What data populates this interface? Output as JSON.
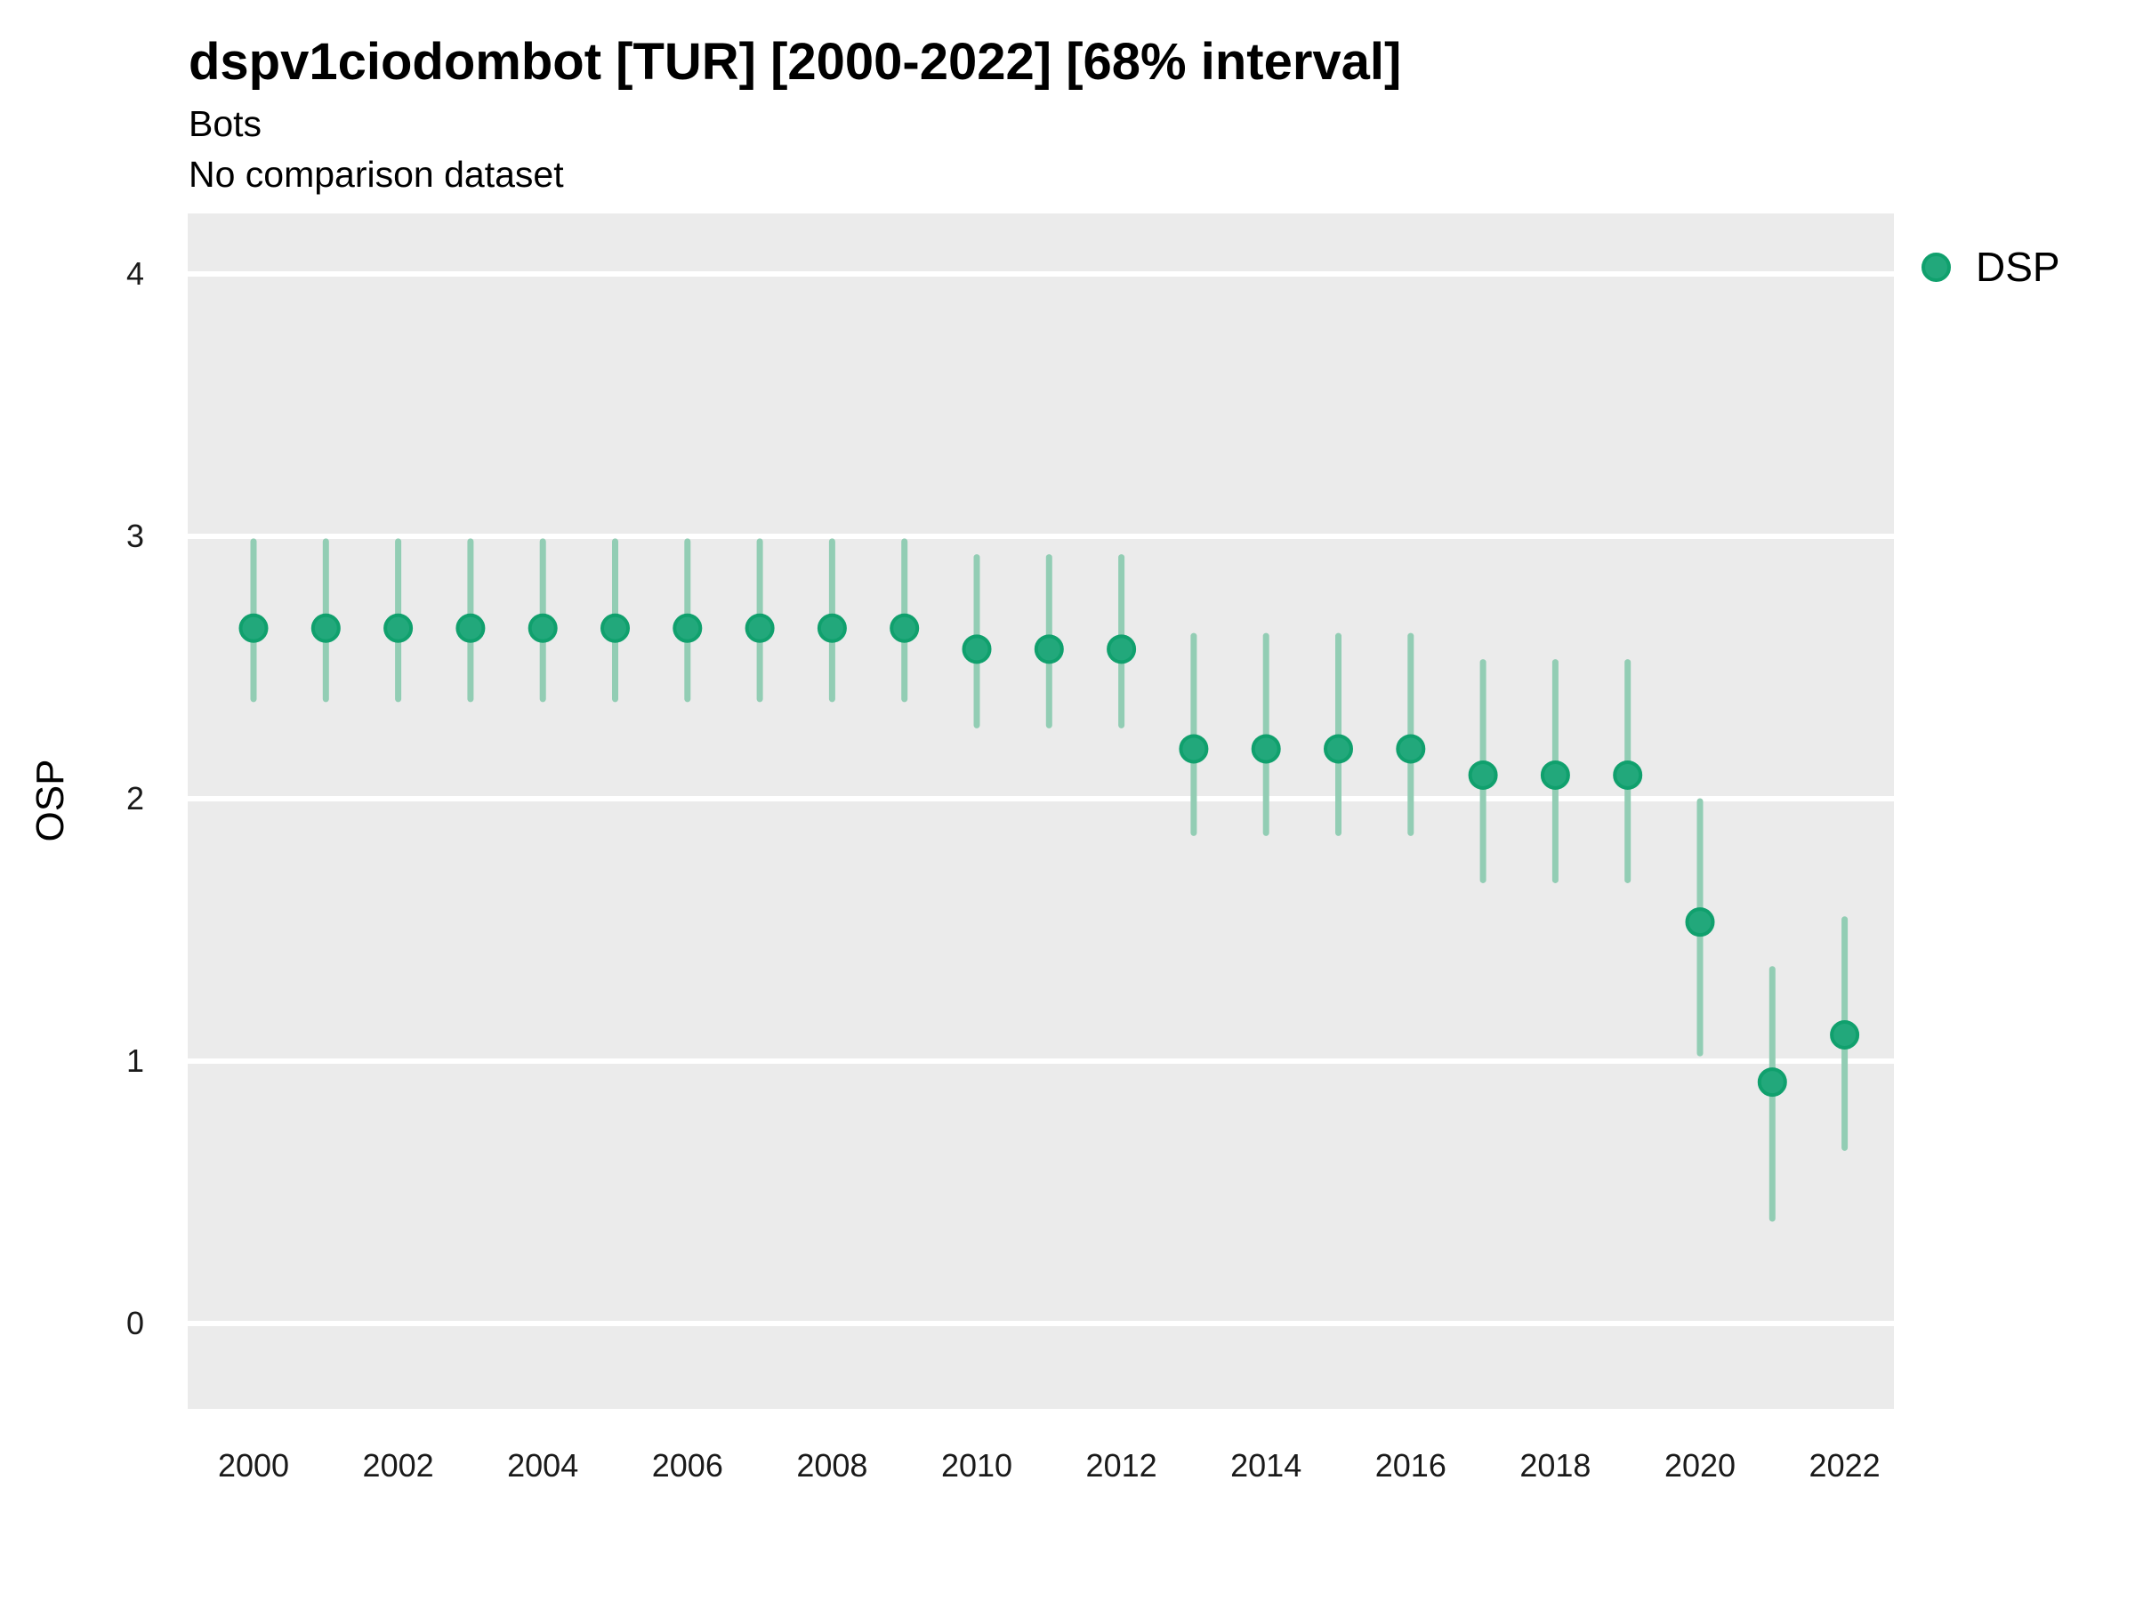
{
  "header": {
    "title": "dspv1ciodombot [TUR] [2000-2022] [68% interval]",
    "subtitle_line1": "Bots",
    "subtitle_line2": "No comparison dataset"
  },
  "legend": {
    "label": "DSP",
    "marker": "circle-icon",
    "position": "right"
  },
  "axes": {
    "y_label": "OSP",
    "x_label": "",
    "y_ticks": [
      4,
      3,
      2,
      1,
      0
    ],
    "x_ticks": [
      2000,
      2002,
      2004,
      2006,
      2008,
      2010,
      2012,
      2014,
      2016,
      2018,
      2020,
      2022
    ]
  },
  "colors": {
    "point_fill": "#22A87B",
    "point_stroke": "#10A06D",
    "interval_bar": "#92CDB4",
    "panel_background": "#EBEBEB",
    "gridline": "#FFFFFF",
    "text": "#000000"
  },
  "chart_data": {
    "type": "pointrange",
    "title": "dspv1ciodombot [TUR] [2000-2022] [68% interval]",
    "subtitle": [
      "Bots",
      "No comparison dataset"
    ],
    "xlabel": "",
    "ylabel": "OSP",
    "interval_label": "68% interval",
    "legend_entries": [
      "DSP"
    ],
    "legend_position": "right",
    "grid": "horizontal-major-only",
    "ylim": [
      -0.33,
      4.23
    ],
    "xlim": [
      1999.1,
      2022.7
    ],
    "series": [
      {
        "name": "DSP",
        "points": [
          {
            "year": 2000,
            "value": 2.65,
            "lower": 2.38,
            "upper": 2.98
          },
          {
            "year": 2001,
            "value": 2.65,
            "lower": 2.38,
            "upper": 2.98
          },
          {
            "year": 2002,
            "value": 2.65,
            "lower": 2.38,
            "upper": 2.98
          },
          {
            "year": 2003,
            "value": 2.65,
            "lower": 2.38,
            "upper": 2.98
          },
          {
            "year": 2004,
            "value": 2.65,
            "lower": 2.38,
            "upper": 2.98
          },
          {
            "year": 2005,
            "value": 2.65,
            "lower": 2.38,
            "upper": 2.98
          },
          {
            "year": 2006,
            "value": 2.65,
            "lower": 2.38,
            "upper": 2.98
          },
          {
            "year": 2007,
            "value": 2.65,
            "lower": 2.38,
            "upper": 2.98
          },
          {
            "year": 2008,
            "value": 2.65,
            "lower": 2.38,
            "upper": 2.98
          },
          {
            "year": 2009,
            "value": 2.65,
            "lower": 2.38,
            "upper": 2.98
          },
          {
            "year": 2010,
            "value": 2.57,
            "lower": 2.28,
            "upper": 2.92
          },
          {
            "year": 2011,
            "value": 2.57,
            "lower": 2.28,
            "upper": 2.92
          },
          {
            "year": 2012,
            "value": 2.57,
            "lower": 2.28,
            "upper": 2.92
          },
          {
            "year": 2013,
            "value": 2.19,
            "lower": 1.87,
            "upper": 2.62
          },
          {
            "year": 2014,
            "value": 2.19,
            "lower": 1.87,
            "upper": 2.62
          },
          {
            "year": 2015,
            "value": 2.19,
            "lower": 1.87,
            "upper": 2.62
          },
          {
            "year": 2016,
            "value": 2.19,
            "lower": 1.87,
            "upper": 2.62
          },
          {
            "year": 2017,
            "value": 2.09,
            "lower": 1.69,
            "upper": 2.52
          },
          {
            "year": 2018,
            "value": 2.09,
            "lower": 1.69,
            "upper": 2.52
          },
          {
            "year": 2019,
            "value": 2.09,
            "lower": 1.69,
            "upper": 2.52
          },
          {
            "year": 2020,
            "value": 1.53,
            "lower": 1.03,
            "upper": 1.99
          },
          {
            "year": 2021,
            "value": 0.92,
            "lower": 0.4,
            "upper": 1.35
          },
          {
            "year": 2022,
            "value": 1.1,
            "lower": 0.67,
            "upper": 1.54
          }
        ]
      }
    ]
  }
}
